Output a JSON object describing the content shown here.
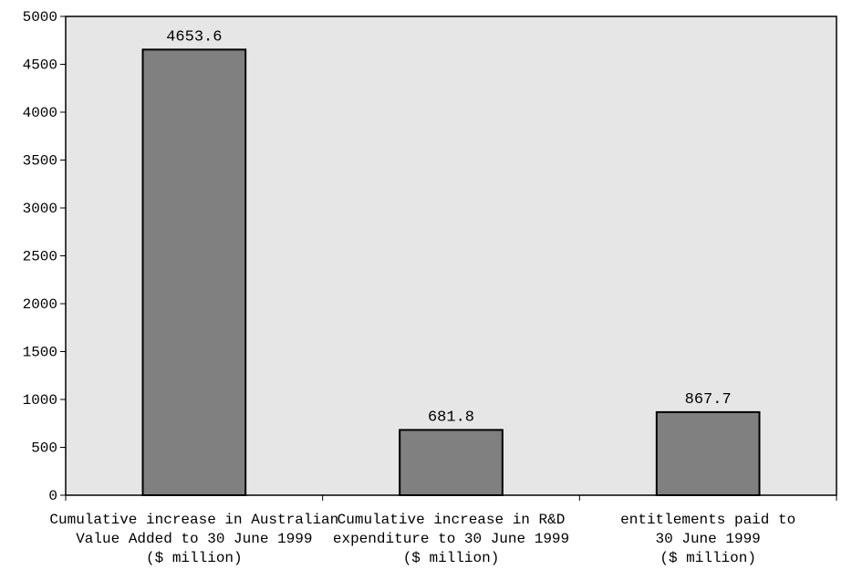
{
  "chart_data": {
    "type": "bar",
    "title": "",
    "xlabel": "",
    "ylabel": "",
    "ylim": [
      0,
      5000
    ],
    "yticks": [
      0,
      500,
      1000,
      1500,
      2000,
      2500,
      3000,
      3500,
      4000,
      4500,
      5000
    ],
    "categories": [
      [
        "Cumulative increase in Australian",
        "Value Added to 30 June 1999",
        "($ million)"
      ],
      [
        "Cumulative increase in R&D",
        "expenditure to 30 June 1999",
        "($ million)"
      ],
      [
        "entitlements paid to",
        "30 June 1999",
        "($ million)"
      ]
    ],
    "values": [
      4653.6,
      681.8,
      867.7
    ],
    "data_labels": [
      "4653.6",
      "681.8",
      "867.7"
    ],
    "grid": false,
    "legend": "none",
    "colors": {
      "plot_background": "#e6e6e6",
      "bar_fill": "#808080",
      "bar_stroke": "#000000",
      "axis": "#000000"
    }
  }
}
